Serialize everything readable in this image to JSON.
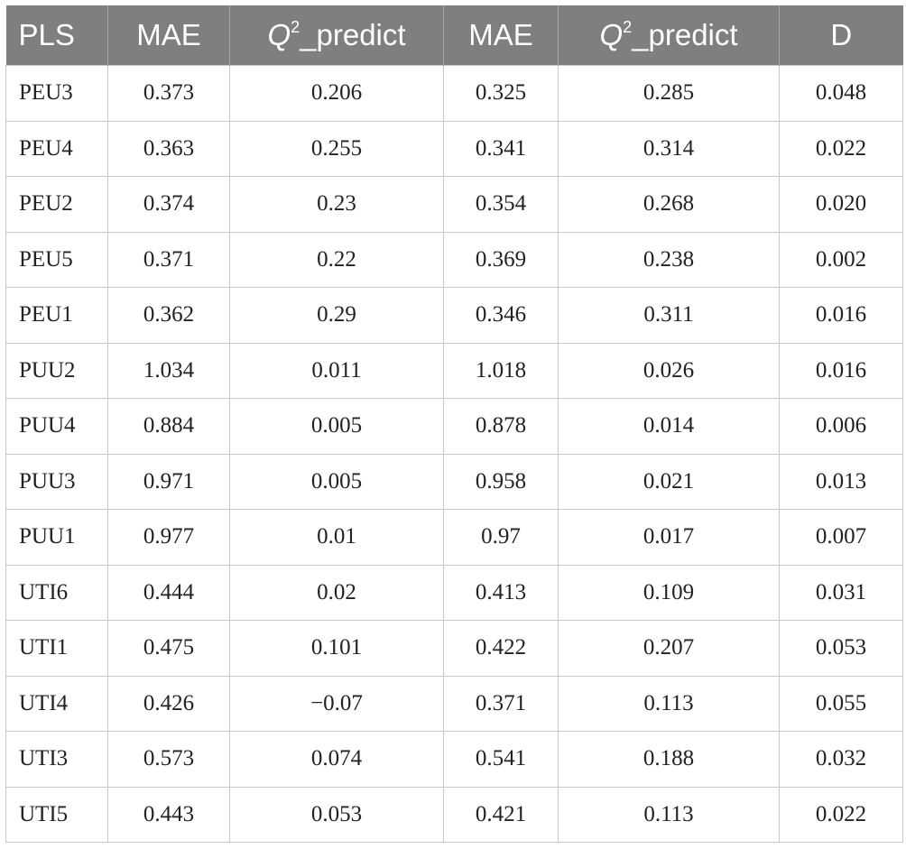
{
  "headers": [
    {
      "main": "PLS"
    },
    {
      "main": "MAE"
    },
    {
      "pre": "Q",
      "sup": "2",
      "post": "_predict"
    },
    {
      "main": "MAE"
    },
    {
      "pre": "Q",
      "sup": "2",
      "post": "_predict"
    },
    {
      "main": "D"
    }
  ],
  "rows": [
    [
      "PEU3",
      "0.373",
      "0.206",
      "0.325",
      "0.285",
      "0.048"
    ],
    [
      "PEU4",
      "0.363",
      "0.255",
      "0.341",
      "0.314",
      "0.022"
    ],
    [
      "PEU2",
      "0.374",
      "0.23",
      "0.354",
      "0.268",
      "0.020"
    ],
    [
      "PEU5",
      "0.371",
      "0.22",
      "0.369",
      "0.238",
      "0.002"
    ],
    [
      "PEU1",
      "0.362",
      "0.29",
      "0.346",
      "0.311",
      "0.016"
    ],
    [
      "PUU2",
      "1.034",
      "0.011",
      "1.018",
      "0.026",
      "0.016"
    ],
    [
      "PUU4",
      "0.884",
      "0.005",
      "0.878",
      "0.014",
      "0.006"
    ],
    [
      "PUU3",
      "0.971",
      "0.005",
      "0.958",
      "0.021",
      "0.013"
    ],
    [
      "PUU1",
      "0.977",
      "0.01",
      "0.97",
      "0.017",
      "0.007"
    ],
    [
      "UTI6",
      "0.444",
      "0.02",
      "0.413",
      "0.109",
      "0.031"
    ],
    [
      "UTI1",
      "0.475",
      "0.101",
      "0.422",
      "0.207",
      "0.053"
    ],
    [
      "UTI4",
      "0.426",
      "−0.07",
      "0.371",
      "0.113",
      "0.055"
    ],
    [
      "UTI3",
      "0.573",
      "0.074",
      "0.541",
      "0.188",
      "0.032"
    ],
    [
      "UTI5",
      "0.443",
      "0.053",
      "0.421",
      "0.113",
      "0.022"
    ]
  ]
}
